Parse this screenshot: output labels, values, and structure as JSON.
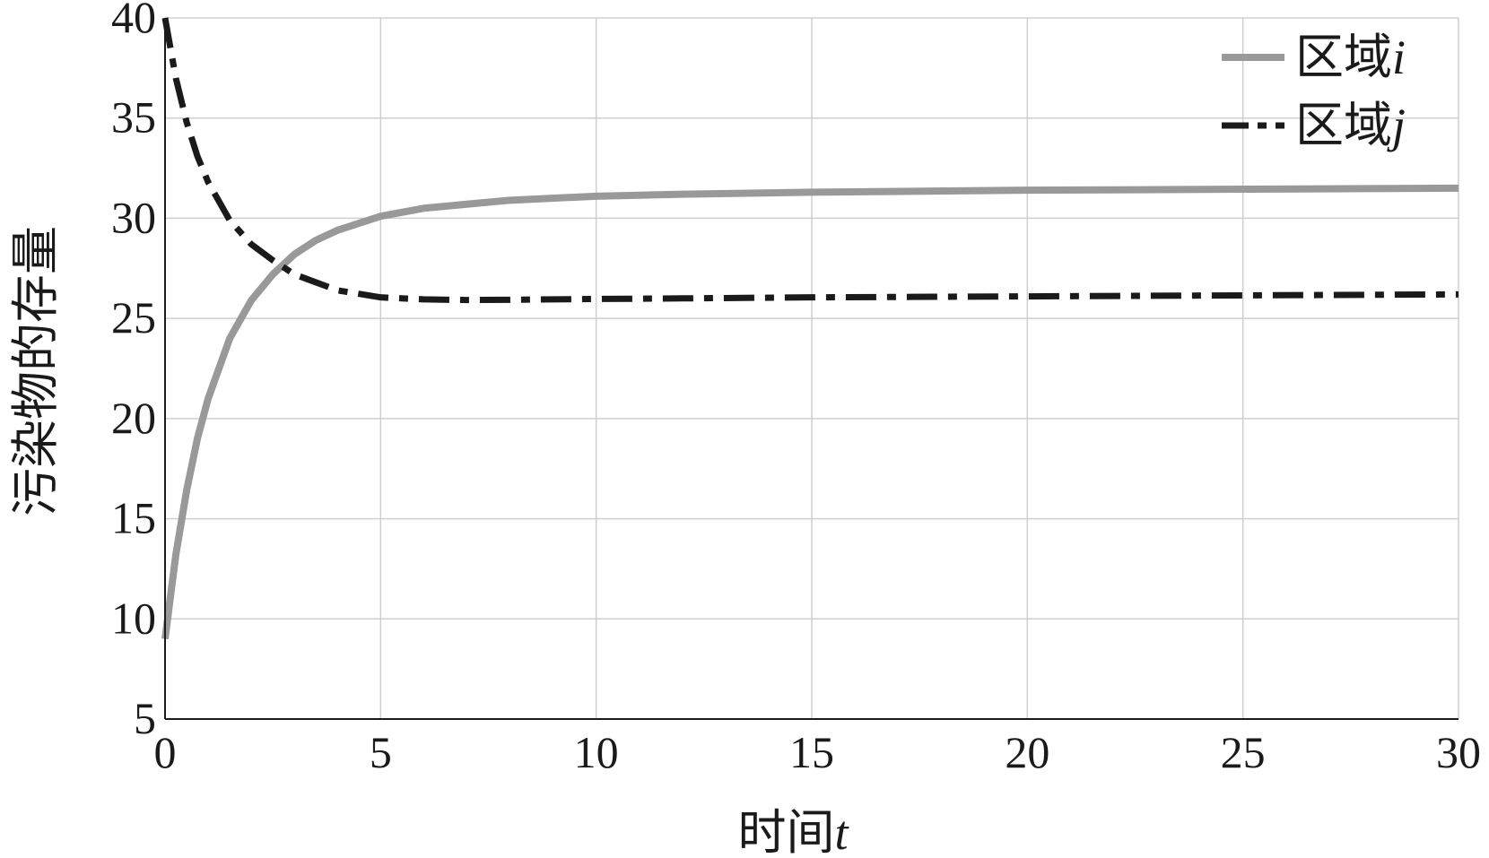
{
  "chart_data": {
    "type": "line",
    "xlabel": {
      "text": "时间",
      "var": "t"
    },
    "ylabel": "污染物的存量",
    "xlim": [
      0,
      30
    ],
    "ylim": [
      5,
      40
    ],
    "xticks": [
      0,
      5,
      10,
      15,
      20,
      25,
      30
    ],
    "yticks": [
      5,
      10,
      15,
      20,
      25,
      30,
      35,
      40
    ],
    "grid": true,
    "legend_position": "top-right",
    "series": [
      {
        "name": "区域",
        "name_var": "i",
        "color": "#999999",
        "style": "solid",
        "x": [
          0,
          0.25,
          0.5,
          0.75,
          1,
          1.5,
          2,
          2.5,
          3,
          3.5,
          4,
          5,
          6,
          7,
          8,
          10,
          12,
          15,
          20,
          25,
          30
        ],
        "y": [
          9,
          13.2,
          16.4,
          19,
          21,
          24,
          25.9,
          27.2,
          28.2,
          28.9,
          29.4,
          30.1,
          30.5,
          30.7,
          30.9,
          31.1,
          31.2,
          31.3,
          31.4,
          31.45,
          31.5
        ]
      },
      {
        "name": "区域",
        "name_var": "j",
        "color": "#1a1a1a",
        "style": "dashdot",
        "x": [
          0,
          0.25,
          0.5,
          0.75,
          1,
          1.5,
          2,
          2.5,
          3,
          3.5,
          4,
          5,
          6,
          7,
          8,
          10,
          12,
          15,
          20,
          25,
          30
        ],
        "y": [
          40,
          37,
          34.8,
          33.1,
          31.8,
          29.9,
          28.7,
          27.9,
          27.2,
          26.8,
          26.4,
          26.05,
          25.95,
          25.92,
          25.93,
          25.97,
          26.0,
          26.05,
          26.1,
          26.15,
          26.2
        ]
      }
    ]
  }
}
